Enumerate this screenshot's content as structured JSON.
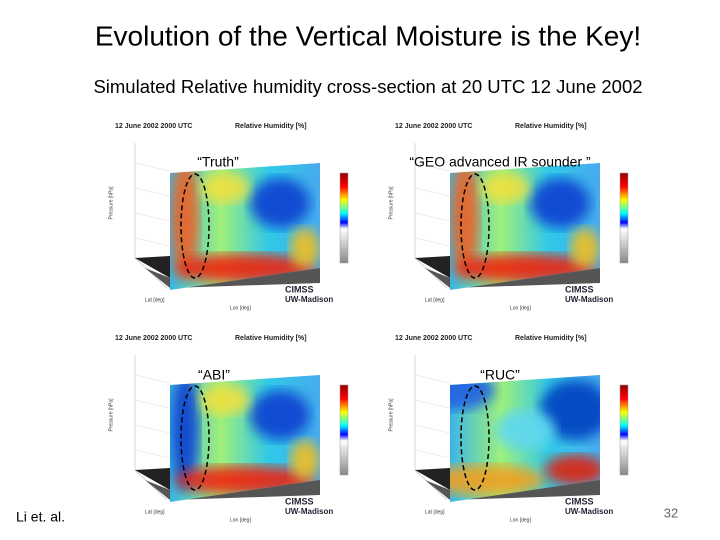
{
  "title": "Evolution of the Vertical Moisture is the Key!",
  "subtitle": "Simulated Relative humidity cross-section at 20 UTC 12 June 2002",
  "panels": [
    {
      "header": "12 June 2002 2000 UTC",
      "variable": "Relative Humidity [%]",
      "caption": "“Truth”",
      "y_label": "Pressure [hPa]",
      "lat_label": "Lat [deg]",
      "lon_label": "Lon [deg]",
      "logo": "CIMSS",
      "logo_sub": "UW-Madison"
    },
    {
      "header": "12 June 2002 2000 UTC",
      "variable": "Relative Humidity [%]",
      "caption": "“GEO advanced IR sounder ”",
      "y_label": "Pressure [hPa]",
      "lat_label": "Lat [deg]",
      "lon_label": "Lon [deg]",
      "logo": "CIMSS",
      "logo_sub": "UW-Madison"
    },
    {
      "header": "12 June 2002 2000 UTC",
      "variable": "Relative Humidity [%]",
      "caption": "“ABI”",
      "y_label": "Pressure [hPa]",
      "lat_label": "Lat [deg]",
      "lon_label": "Lon [deg]",
      "logo": "CIMSS",
      "logo_sub": "UW-Madison"
    },
    {
      "header": "12 June 2002 2000 UTC",
      "variable": "Relative Humidity [%]",
      "caption": "“RUC”",
      "y_label": "Pressure [hPa]",
      "lat_label": "Lat [deg]",
      "lon_label": "Lon [deg]",
      "logo": "CIMSS",
      "logo_sub": "UW-Madison"
    }
  ],
  "footer": {
    "author": "Li et. al.",
    "page": "32"
  }
}
